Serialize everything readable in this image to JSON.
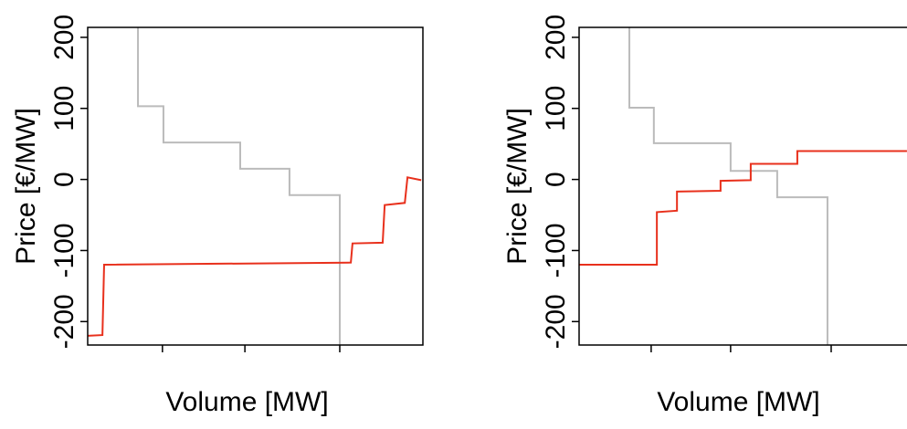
{
  "chart_data": [
    {
      "type": "line",
      "y_label": "Price [€/MW]",
      "x_label": "Volume [MW]",
      "xlim": [
        0,
        100
      ],
      "ylim": [
        -233,
        214
      ],
      "xticks": [
        22.3,
        46.9,
        75.2
      ],
      "yticks": [
        -200,
        -100,
        0,
        100,
        200
      ],
      "series": [
        {
          "color": "#bbbbbb",
          "x": [
            15.0,
            15.0,
            22.6,
            22.6,
            45.5,
            45.5,
            60.2,
            60.2,
            75.2,
            75.2
          ],
          "values": [
            214,
            103,
            103,
            52,
            52,
            15,
            15,
            -22,
            -22,
            -233
          ]
        },
        {
          "color": "#e8301c",
          "x": [
            0,
            4.4,
            4.9,
            78.5,
            79.0,
            88.0,
            88.6,
            94.6,
            95.4,
            99.5
          ],
          "values": [
            -220,
            -219,
            -120,
            -117,
            -90,
            -89,
            -36,
            -33,
            3,
            -1
          ]
        }
      ]
    },
    {
      "type": "line",
      "y_label": "Price [€/MW]",
      "x_label": "Volume [MW]",
      "xlim": [
        0,
        100
      ],
      "ylim": [
        -233,
        214
      ],
      "xticks": [
        21.5,
        45.2,
        75.2
      ],
      "yticks": [
        -200,
        -100,
        0,
        100,
        200
      ],
      "series": [
        {
          "color": "#bbbbbb",
          "x": [
            15.0,
            15.0,
            22.3,
            22.3,
            45.2,
            45.2,
            59.1,
            59.1,
            74.1,
            74.1
          ],
          "values": [
            214,
            101,
            101,
            51,
            51,
            12,
            12,
            -25,
            -25,
            -233
          ]
        },
        {
          "color": "#e8301c",
          "x": [
            0,
            23.2,
            23.2,
            29.2,
            29.2,
            42.2,
            42.2,
            51.2,
            51.2,
            65.1,
            65.1,
            97.8
          ],
          "values": [
            -120,
            -120,
            -46,
            -44,
            -17,
            -16,
            -2,
            -1,
            22,
            22,
            40,
            40
          ]
        }
      ]
    }
  ]
}
